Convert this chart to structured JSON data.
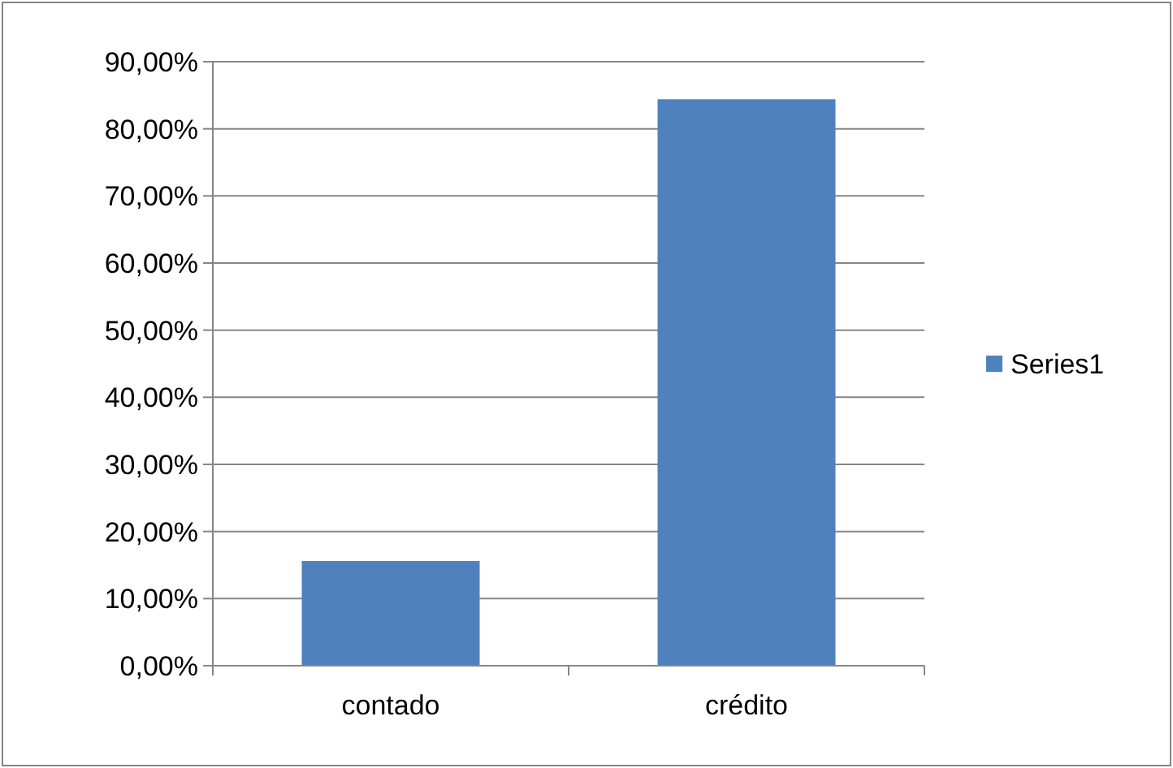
{
  "chart_data": {
    "type": "bar",
    "categories": [
      "contado",
      "crédito"
    ],
    "series": [
      {
        "name": "Series1",
        "color": "#4f81bd",
        "values": [
          15.6,
          84.4
        ]
      }
    ],
    "ylim": [
      0,
      90
    ],
    "yticks": [
      {
        "value": 0,
        "label": "0,00%"
      },
      {
        "value": 10,
        "label": "10,00%"
      },
      {
        "value": 20,
        "label": "20,00%"
      },
      {
        "value": 30,
        "label": "30,00%"
      },
      {
        "value": 40,
        "label": "40,00%"
      },
      {
        "value": 50,
        "label": "50,00%"
      },
      {
        "value": 60,
        "label": "60,00%"
      },
      {
        "value": 70,
        "label": "70,00%"
      },
      {
        "value": 80,
        "label": "80,00%"
      },
      {
        "value": 90,
        "label": "90,00%"
      }
    ],
    "grid": "y",
    "legend": "right"
  }
}
